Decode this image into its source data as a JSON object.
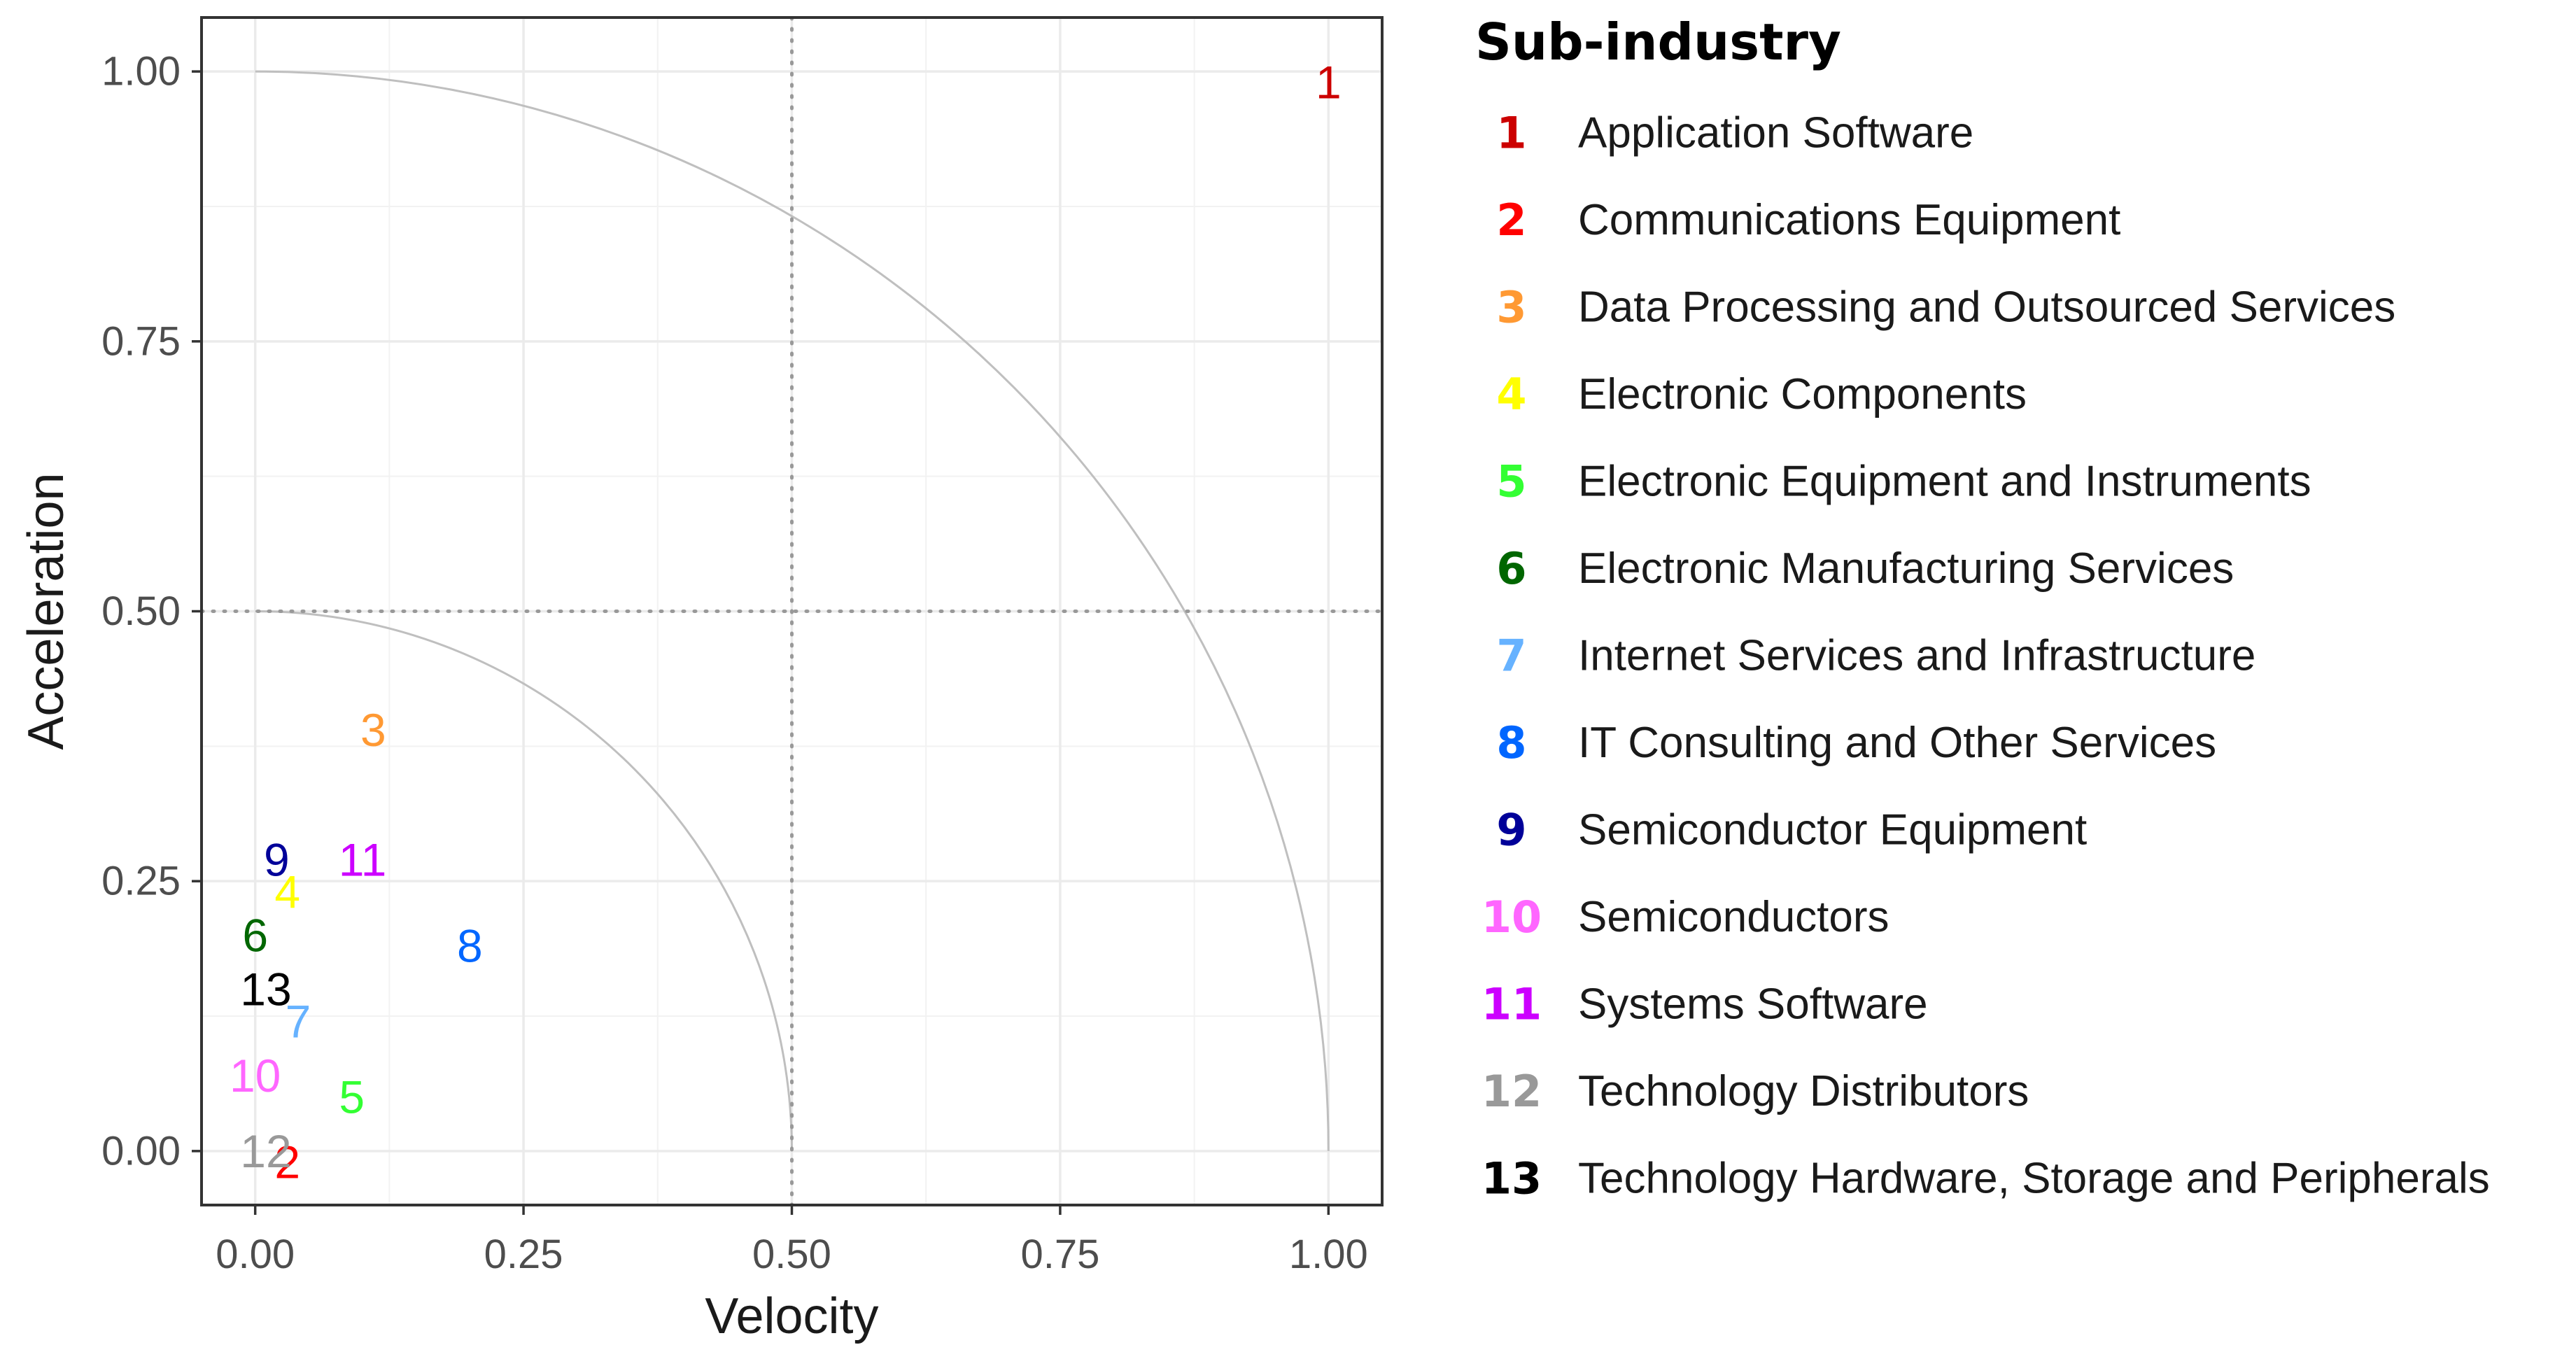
{
  "chart_data": {
    "type": "scatter",
    "xlabel": "Velocity",
    "ylabel": "Acceleration",
    "xlim": [
      -0.05,
      1.05
    ],
    "ylim": [
      -0.05,
      1.05
    ],
    "x_ticks": [
      {
        "value": 0.0,
        "label": "0.00"
      },
      {
        "value": 0.25,
        "label": "0.25"
      },
      {
        "value": 0.5,
        "label": "0.50"
      },
      {
        "value": 0.75,
        "label": "0.75"
      },
      {
        "value": 1.0,
        "label": "1.00"
      }
    ],
    "y_ticks": [
      {
        "value": 0.0,
        "label": "0.00"
      },
      {
        "value": 0.25,
        "label": "0.25"
      },
      {
        "value": 0.5,
        "label": "0.50"
      },
      {
        "value": 0.75,
        "label": "0.75"
      },
      {
        "value": 1.0,
        "label": "1.00"
      }
    ],
    "grid": true,
    "reference_lines": {
      "x": 0.5,
      "y": 0.5,
      "style": "dotted"
    },
    "reference_arcs": [
      0.5,
      1.0
    ],
    "legend": {
      "title": "Sub-industry",
      "placement": "right"
    },
    "points": [
      {
        "key": "1",
        "name": "Application Software",
        "x": 1.0,
        "y": 0.99,
        "color": "#cc0000"
      },
      {
        "key": "2",
        "name": "Communications Equipment",
        "x": 0.03,
        "y": -0.01,
        "color": "#ff0000"
      },
      {
        "key": "3",
        "name": "Data Processing and Outsourced Services",
        "x": 0.11,
        "y": 0.39,
        "color": "#ff9933"
      },
      {
        "key": "4",
        "name": "Electronic Components",
        "x": 0.03,
        "y": 0.24,
        "color": "#ffff00"
      },
      {
        "key": "5",
        "name": "Electronic Equipment and Instruments",
        "x": 0.09,
        "y": 0.05,
        "color": "#33ff33"
      },
      {
        "key": "6",
        "name": "Electronic Manufacturing Services",
        "x": 0.0,
        "y": 0.2,
        "color": "#006600"
      },
      {
        "key": "7",
        "name": "Internet Services and Infrastructure",
        "x": 0.04,
        "y": 0.12,
        "color": "#66b2ff"
      },
      {
        "key": "8",
        "name": "IT Consulting and Other Services",
        "x": 0.2,
        "y": 0.19,
        "color": "#0066ff"
      },
      {
        "key": "9",
        "name": "Semiconductor Equipment",
        "x": 0.02,
        "y": 0.27,
        "color": "#000099"
      },
      {
        "key": "10",
        "name": "Semiconductors",
        "x": 0.0,
        "y": 0.07,
        "color": "#ff66ff"
      },
      {
        "key": "11",
        "name": "Systems Software",
        "x": 0.1,
        "y": 0.27,
        "color": "#cc00ff"
      },
      {
        "key": "12",
        "name": "Technology Distributors",
        "x": 0.01,
        "y": 0.0,
        "color": "#999999"
      },
      {
        "key": "13",
        "name": "Technology Hardware, Storage and Peripherals",
        "x": 0.01,
        "y": 0.15,
        "color": "#000000"
      }
    ]
  }
}
